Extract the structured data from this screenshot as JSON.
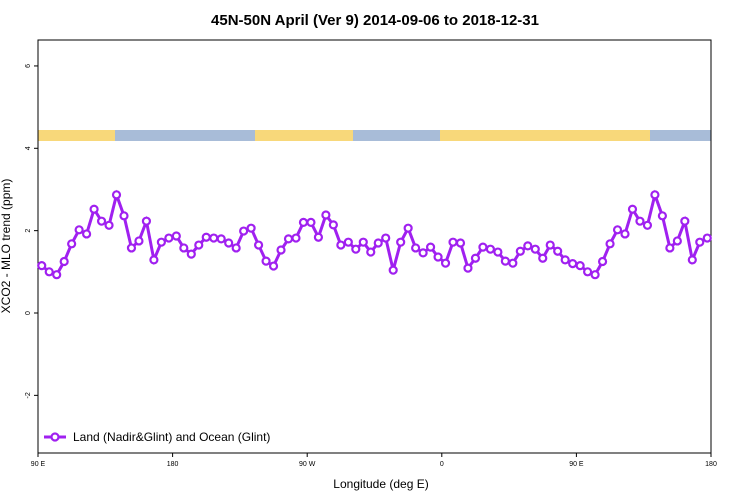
{
  "chart_data": {
    "type": "line",
    "title": "45N-50N April (Ver 9)   2014-09-06 to 2018-12-31",
    "x_label": "Longitude (deg E)",
    "y_label": "XCO2 - MLO trend (ppm)",
    "x": [
      92.5,
      97.5,
      102.5,
      107.5,
      112.5,
      117.5,
      122.5,
      127.5,
      132.5,
      137.5,
      142.5,
      147.5,
      152.5,
      157.5,
      162.5,
      167.5,
      172.5,
      177.5,
      182.5,
      187.5,
      192.5,
      197.5,
      202.5,
      207.5,
      212.5,
      217.5,
      222.5,
      227.5,
      232.5,
      237.5,
      242.5,
      247.5,
      252.5,
      257.5,
      262.5,
      267.5,
      272.5,
      277.5,
      282.5,
      287.5,
      292.5,
      297.5,
      302.5,
      307.5,
      312.5,
      317.5,
      322.5,
      327.5,
      332.5,
      337.5,
      342.5,
      347.5,
      352.5,
      357.5,
      362.5,
      367.5,
      372.5,
      377.5,
      382.5,
      387.5,
      392.5,
      397.5,
      402.5,
      407.5,
      412.5,
      417.5,
      422.5,
      427.5,
      432.5,
      437.5,
      442.5,
      447.5,
      452.5,
      457.5,
      462.5,
      467.5,
      472.5,
      477.5,
      482.5,
      487.5,
      492.5,
      497.5,
      502.5,
      507.5,
      512.5,
      517.5,
      522.5,
      527.5,
      532.5,
      537.5
    ],
    "series": [
      {
        "name": "Land (Nadir&Glint) and Ocean (Glint)",
        "color": "#a020f0",
        "values": [
          1.15,
          1.0,
          0.93,
          1.25,
          1.68,
          2.02,
          1.92,
          2.52,
          2.23,
          2.13,
          2.87,
          2.36,
          1.58,
          1.75,
          2.23,
          1.29,
          1.72,
          1.82,
          1.87,
          1.58,
          1.43,
          1.65,
          1.84,
          1.82,
          1.8,
          1.7,
          1.58,
          1.99,
          2.06,
          1.65,
          1.26,
          1.14,
          1.53,
          1.8,
          1.82,
          2.2,
          2.2,
          1.84,
          2.38,
          2.14,
          1.65,
          1.72,
          1.55,
          1.72,
          1.48,
          1.7,
          1.82,
          1.04,
          1.72,
          2.06,
          1.58,
          1.46,
          1.6,
          1.36,
          1.21,
          1.72,
          1.7,
          1.09,
          1.33,
          1.6,
          1.55,
          1.48,
          1.26,
          1.21,
          1.5,
          1.63,
          1.55,
          1.33,
          1.65,
          1.5,
          1.29,
          1.2,
          1.15,
          1.0,
          0.93,
          1.25,
          1.68,
          2.02,
          1.92,
          2.52,
          2.23,
          2.13,
          2.87,
          2.36,
          1.58,
          1.75,
          2.23,
          1.29,
          1.72,
          1.82
        ]
      }
    ],
    "xlim": [
      90,
      540
    ],
    "xticks": [
      {
        "value": 90,
        "label": "90 E"
      },
      180,
      {
        "value": 270,
        "label": "90 W"
      },
      {
        "value": 360,
        "label": "0"
      },
      {
        "value": 450,
        "label": "90 E"
      },
      {
        "value": 540,
        "label": "180"
      }
    ],
    "ylim": [
      -3.4,
      6.63
    ],
    "yticks": [
      -2,
      0,
      2,
      4,
      6
    ],
    "legend": "bottom-left"
  }
}
